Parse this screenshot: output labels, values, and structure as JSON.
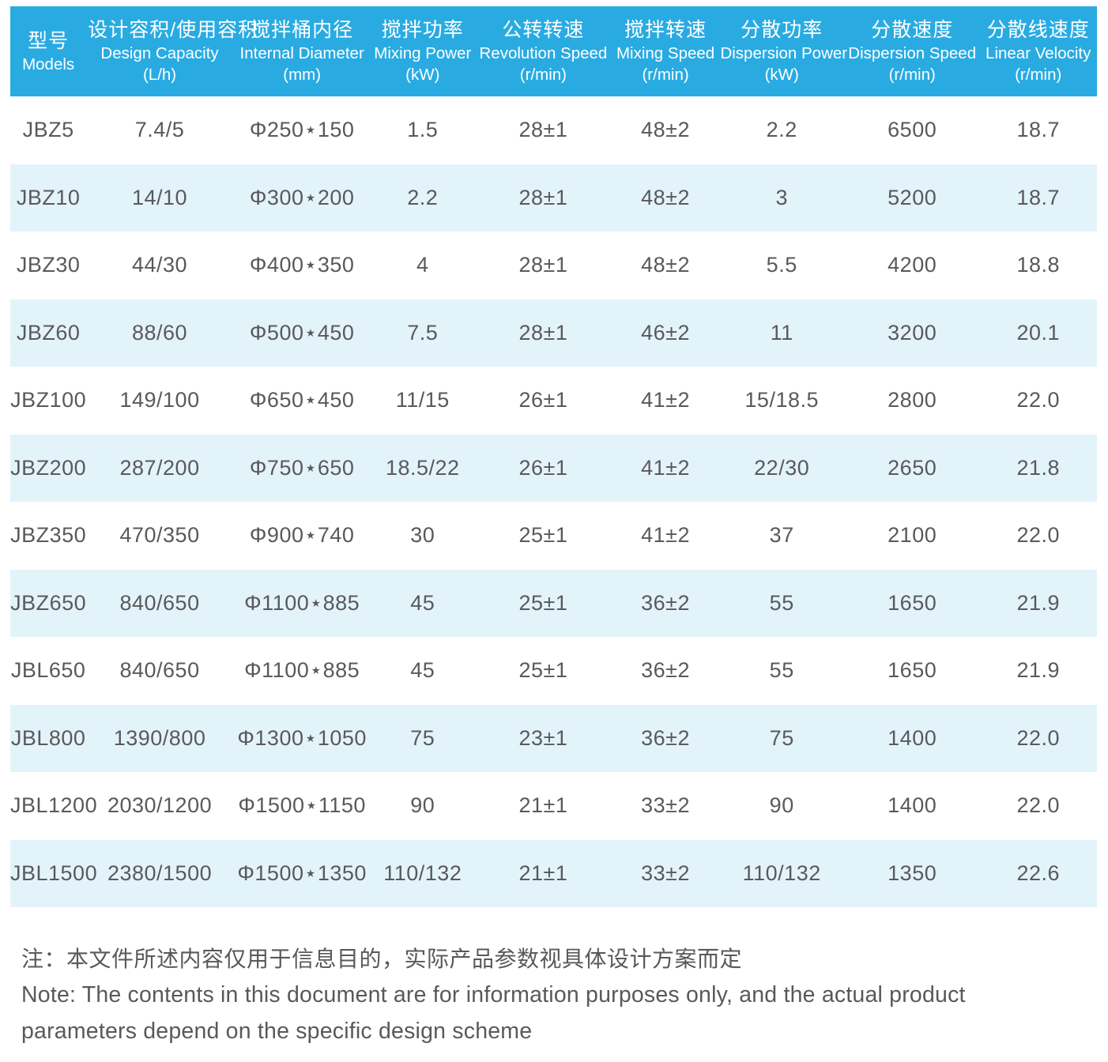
{
  "table": {
    "columns": [
      {
        "zh": "型号",
        "en": "Models",
        "unit": ""
      },
      {
        "zh": "设计容积/使用容积",
        "en": "Design Capacity",
        "unit": "(L/h)"
      },
      {
        "zh": "搅拌桶内径",
        "en": "Internal Diameter",
        "unit": "(mm)"
      },
      {
        "zh": "搅拌功率",
        "en": "Mixing Power",
        "unit": "(kW)"
      },
      {
        "zh": "公转转速",
        "en": "Revolution Speed",
        "unit": "(r/min)"
      },
      {
        "zh": "搅拌转速",
        "en": "Mixing Speed",
        "unit": "(r/min)"
      },
      {
        "zh": "分散功率",
        "en": "Dispersion Power",
        "unit": "(kW)"
      },
      {
        "zh": "分散速度",
        "en": "Dispersion Speed",
        "unit": "(r/min)"
      },
      {
        "zh": "分散线速度",
        "en": "Linear Velocity",
        "unit": "(r/min)"
      }
    ],
    "rows": [
      [
        "JBZ5",
        "7.4/5",
        "Φ250⋆150",
        "1.5",
        "28±1",
        "48±2",
        "2.2",
        "6500",
        "18.7"
      ],
      [
        "JBZ10",
        "14/10",
        "Φ300⋆200",
        "2.2",
        "28±1",
        "48±2",
        "3",
        "5200",
        "18.7"
      ],
      [
        "JBZ30",
        "44/30",
        "Φ400⋆350",
        "4",
        "28±1",
        "48±2",
        "5.5",
        "4200",
        "18.8"
      ],
      [
        "JBZ60",
        "88/60",
        "Φ500⋆450",
        "7.5",
        "28±1",
        "46±2",
        "11",
        "3200",
        "20.1"
      ],
      [
        "JBZ100",
        "149/100",
        "Φ650⋆450",
        "11/15",
        "26±1",
        "41±2",
        "15/18.5",
        "2800",
        "22.0"
      ],
      [
        "JBZ200",
        "287/200",
        "Φ750⋆650",
        "18.5/22",
        "26±1",
        "41±2",
        "22/30",
        "2650",
        "21.8"
      ],
      [
        "JBZ350",
        "470/350",
        "Φ900⋆740",
        "30",
        "25±1",
        "41±2",
        "37",
        "2100",
        "22.0"
      ],
      [
        "JBZ650",
        "840/650",
        "Φ1100⋆885",
        "45",
        "25±1",
        "36±2",
        "55",
        "1650",
        "21.9"
      ],
      [
        "JBL650",
        "840/650",
        "Φ1100⋆885",
        "45",
        "25±1",
        "36±2",
        "55",
        "1650",
        "21.9"
      ],
      [
        "JBL800",
        "1390/800",
        "Φ1300⋆1050",
        "75",
        "23±1",
        "36±2",
        "75",
        "1400",
        "22.0"
      ],
      [
        "JBL1200",
        "2030/1200",
        "Φ1500⋆1150",
        "90",
        "21±1",
        "33±2",
        "90",
        "1400",
        "22.0"
      ],
      [
        "JBL1500",
        "2380/1500",
        "Φ1500⋆1350",
        "110/132",
        "21±1",
        "33±2",
        "110/132",
        "1350",
        "22.6"
      ]
    ]
  },
  "note": {
    "zh": "注：本文件所述内容仅用于信息目的，实际产品参数视具体设计方案而定",
    "en": "Note: The contents in this document are for information purposes only, and the actual product parameters depend on the specific design scheme"
  },
  "colors": {
    "header_bg": "#29ABE2",
    "row_alt_bg": "#E3F3FA",
    "header_text": "#FFFFFF",
    "body_text": "#59595B"
  }
}
